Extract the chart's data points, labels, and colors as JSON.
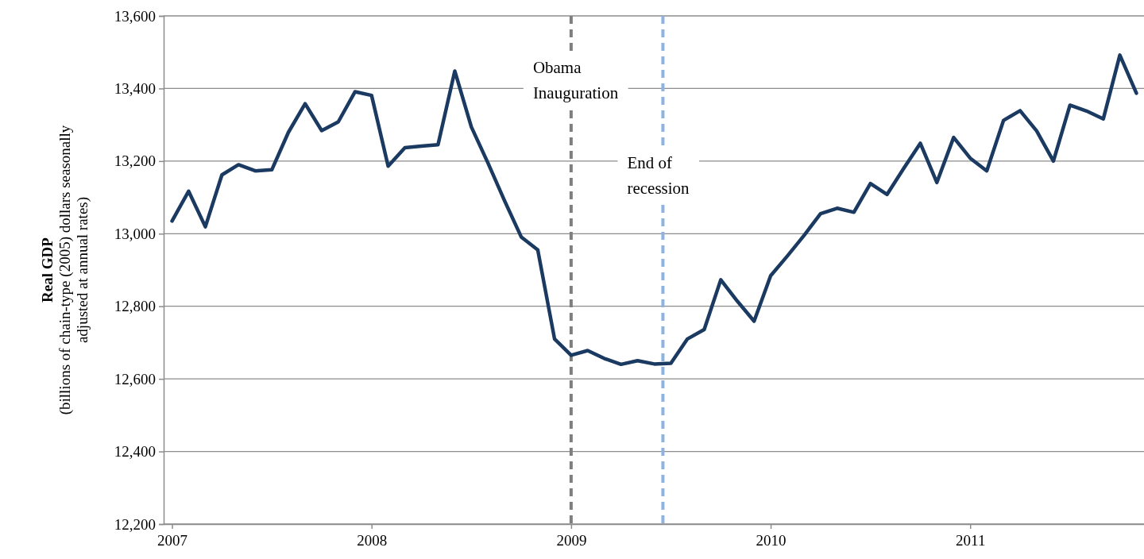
{
  "chart_data": {
    "type": "line",
    "ylabel": "Real GDP\n(billions of chain-type (2005) dollars seasonally\nadjusted at annual rates)",
    "x": [
      2007,
      2007.083,
      2007.167,
      2007.25,
      2007.333,
      2007.417,
      2007.5,
      2007.583,
      2007.667,
      2007.75,
      2007.833,
      2007.917,
      2008,
      2008.083,
      2008.167,
      2008.25,
      2008.333,
      2008.417,
      2008.5,
      2008.583,
      2008.667,
      2008.75,
      2008.833,
      2008.917,
      2009,
      2009.083,
      2009.167,
      2009.25,
      2009.333,
      2009.417,
      2009.5,
      2009.583,
      2009.667,
      2009.75,
      2009.833,
      2009.917,
      2010,
      2010.083,
      2010.167,
      2010.25,
      2010.333,
      2010.417,
      2010.5,
      2010.583,
      2010.667,
      2010.75,
      2010.833,
      2010.917,
      2011,
      2011.083,
      2011.167,
      2011.25,
      2011.333,
      2011.417,
      2011.5,
      2011.583,
      2011.667,
      2011.75,
      2011.833
    ],
    "series": [
      {
        "color": "#1b3a61",
        "values": [
          13035,
          13117,
          13019,
          13162,
          13190,
          13173,
          13176,
          13279,
          13358,
          13284,
          13308,
          13391,
          13381,
          13186,
          13237,
          13241,
          13245,
          13448,
          13294,
          13195,
          13090,
          12991,
          12955,
          12710,
          12665,
          12678,
          12656,
          12640,
          12650,
          12641,
          12643,
          12710,
          12736,
          12873,
          12814,
          12759,
          12884,
          12938,
          12995,
          13055,
          13070,
          13059,
          13138,
          13108,
          13180,
          13249,
          13141,
          13265,
          13208,
          13173,
          13312,
          13339,
          13283,
          13200,
          13354,
          13338,
          13316,
          13492,
          13387
        ]
      }
    ],
    "xlim": [
      2006.958,
      2011.875
    ],
    "xticks": [
      2007,
      2008,
      2009,
      2010,
      2011
    ],
    "ylim": [
      12200,
      13600
    ],
    "yticks": [
      {
        "value": 12200,
        "label": "12,200"
      },
      {
        "value": 12400,
        "label": "12,400"
      },
      {
        "value": 12600,
        "label": "12,600"
      },
      {
        "value": 12800,
        "label": "12,800"
      },
      {
        "value": 13000,
        "label": "13,000"
      },
      {
        "value": 13200,
        "label": "13,200"
      },
      {
        "value": 13400,
        "label": "13,400"
      },
      {
        "value": 13600,
        "label": "13,600"
      }
    ],
    "grid": "y",
    "marker": "none",
    "line_style": "solid",
    "ref_lines": [
      {
        "axis": "x",
        "value": 2009,
        "label": "Obama Inauguration",
        "color": "#7f7f7f",
        "line_style": "dashed"
      },
      {
        "axis": "x",
        "value": 2009.46,
        "label": "End of recession",
        "color": "#8db3e2",
        "line_style": "dashed"
      }
    ]
  }
}
